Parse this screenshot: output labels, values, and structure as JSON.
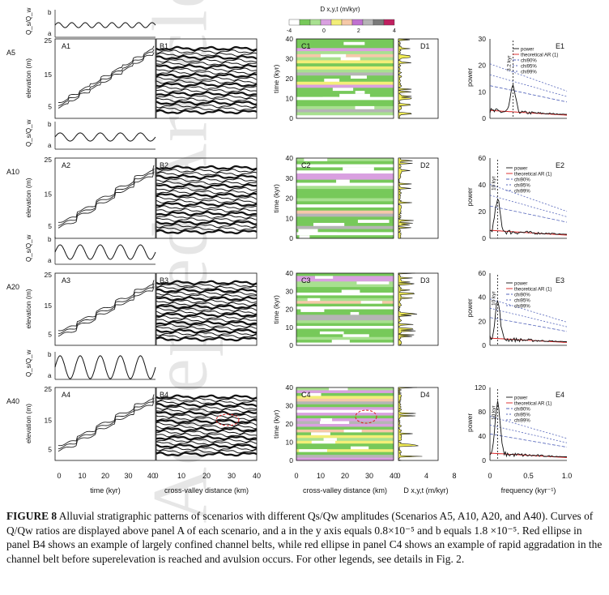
{
  "watermark": "Accepted Article",
  "colorbar": {
    "title": "D x,y,t (m/kyr)",
    "ticks": [
      "-4",
      "0",
      "2",
      "4"
    ],
    "colors": [
      "#ffffff",
      "#77c95a",
      "#a8e090",
      "#d9a0e0",
      "#f3ee78",
      "#f5c8a8",
      "#c070d0",
      "#b5b5b5",
      "#7a7a7a",
      "#c02060"
    ]
  },
  "scenarios": [
    {
      "id": "A5",
      "a_label": "A1",
      "b_label": "B1",
      "c_label": "C1",
      "d_label": "D1",
      "e_label": "E1",
      "amp": 0.15,
      "e_ymax": 30,
      "e_ticks": [
        "0",
        "10",
        "20",
        "30"
      ],
      "peak_label": "3.2 kyr"
    },
    {
      "id": "A10",
      "a_label": "A2",
      "b_label": "B2",
      "c_label": "C2",
      "d_label": "D2",
      "e_label": "E2",
      "amp": 0.3,
      "e_ymax": 60,
      "e_ticks": [
        "0",
        "20",
        "40",
        "60"
      ],
      "peak_label": "10 kyr"
    },
    {
      "id": "A20",
      "a_label": "A3",
      "b_label": "B3",
      "c_label": "C3",
      "d_label": "D3",
      "e_label": "E3",
      "amp": 0.6,
      "e_ymax": 60,
      "e_ticks": [
        "0",
        "20",
        "40",
        "60"
      ],
      "peak_label": "10 kyr"
    },
    {
      "id": "A40",
      "a_label": "A4",
      "b_label": "B4",
      "c_label": "C4",
      "d_label": "D4",
      "e_label": "E4",
      "amp": 1.0,
      "e_ymax": 120,
      "e_ticks": [
        "0",
        "40",
        "80",
        "120"
      ],
      "peak_label": "10 kyr"
    }
  ],
  "axes": {
    "ratio_label": "Q_s/Q_w",
    "ratio_b": "b",
    "ratio_a": "a",
    "elev_label": "elevation (m)",
    "elev_ticks": [
      "5",
      "15",
      "25"
    ],
    "time_label": "time (kyr)",
    "time_ticks": [
      "0",
      "10",
      "20",
      "30",
      "40"
    ],
    "power_label": "power",
    "x_time_label": "time (kyr)",
    "x_time_ticks": [
      "0",
      "10",
      "20",
      "30",
      "40"
    ],
    "x_dist_label": "cross-valley distance (km)",
    "x_dist_ticks": [
      "0",
      "10",
      "20",
      "30",
      "40"
    ],
    "x_d_label": "D x,y,t (m/kyr)",
    "x_d_ticks": [
      "0",
      "4",
      "8"
    ],
    "x_freq_label": "frequency (kyr⁻¹)",
    "x_freq_ticks": [
      "0",
      "0.5",
      "1.0"
    ]
  },
  "legend": [
    "power",
    "theoretical AR (1)",
    "chi90%",
    "chi95%",
    "chi99%"
  ],
  "caption": {
    "prefix": "FIGURE 8",
    "text": "Alluvial stratigraphic patterns of scenarios with different Qs/Qw amplitudes (Scenarios A5, A10, A20, and A40). Curves of Q/Qw ratios are displayed above panel A of each scenario, and a in the y axis equals 0.8×10⁻⁵ and b equals 1.8 ×10⁻⁵. Red ellipse in panel B4 shows an example of largely confined channel belts, while red ellipse in panel C4 shows an example of rapid aggradation in the channel belt before superelevation is reached and avulsion occurs. For other legends, see details in Fig. 2."
  }
}
